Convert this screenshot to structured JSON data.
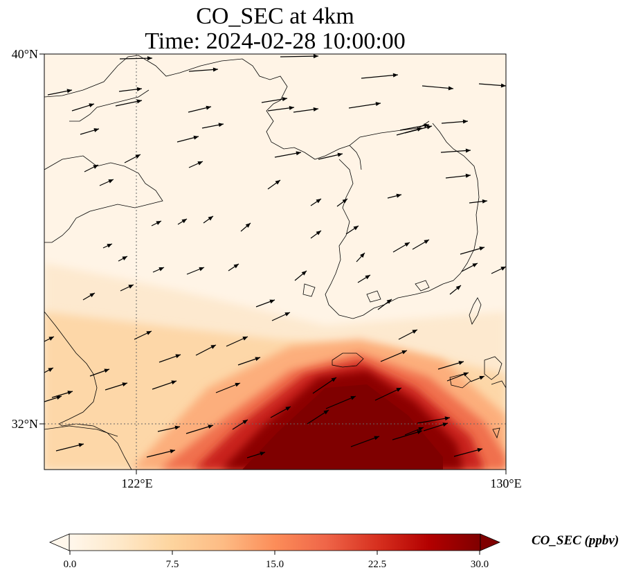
{
  "title_line1": "CO_SEC at 4km",
  "title_line2": "Time: 2024-02-28 10:00:00",
  "lat_labels": [
    "40°N",
    "32°N"
  ],
  "lon_labels": [
    "122°E",
    "130°E"
  ],
  "colorbar": {
    "label": "CO_SEC (ppbv)",
    "ticks": [
      "0.0",
      "7.5",
      "15.0",
      "22.5",
      "30.0"
    ],
    "colormap": [
      "#fff7ec",
      "#fee8c8",
      "#fdd49e",
      "#fdbb84",
      "#fc8d59",
      "#ef6548",
      "#d7301f",
      "#b30000",
      "#7f0000"
    ],
    "extend": "both"
  },
  "map_extent": {
    "lon": [
      120,
      130
    ],
    "lat": [
      31,
      40
    ]
  },
  "colors": {
    "land_line": "#000000",
    "arrow": "#000000",
    "grid": "#666666"
  }
}
